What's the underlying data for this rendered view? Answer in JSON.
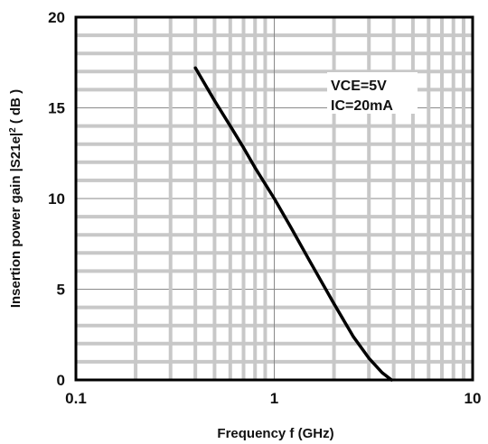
{
  "chart_data": {
    "type": "line",
    "title": "",
    "xlabel": "Frequency  f (GHz)",
    "ylabel_main": "Insertion power gain  |S21e|",
    "ylabel_sup": "2",
    "ylabel_unit": " ( dB )",
    "x_scale": "log",
    "xlim": [
      0.1,
      10
    ],
    "ylim": [
      0,
      20
    ],
    "x_ticks": [
      {
        "value": 0.1,
        "label": "0.1"
      },
      {
        "value": 1,
        "label": "1"
      },
      {
        "value": 10,
        "label": "10"
      }
    ],
    "y_ticks": [
      {
        "value": 0,
        "label": "0"
      },
      {
        "value": 5,
        "label": "5"
      },
      {
        "value": 10,
        "label": "10"
      },
      {
        "value": 15,
        "label": "15"
      },
      {
        "value": 20,
        "label": "20"
      }
    ],
    "grid": true,
    "series": [
      {
        "color": "#000000",
        "x": [
          0.4,
          0.5,
          0.6,
          0.7,
          0.8,
          1.0,
          1.2,
          1.5,
          2.0,
          2.5,
          3.0,
          3.5,
          3.9
        ],
        "y": [
          17.2,
          15.4,
          14.0,
          12.8,
          11.7,
          10.0,
          8.5,
          6.6,
          4.2,
          2.4,
          1.2,
          0.4,
          0.0
        ]
      }
    ],
    "annotations": [
      "VCE=5V",
      "IC=20mA"
    ]
  }
}
